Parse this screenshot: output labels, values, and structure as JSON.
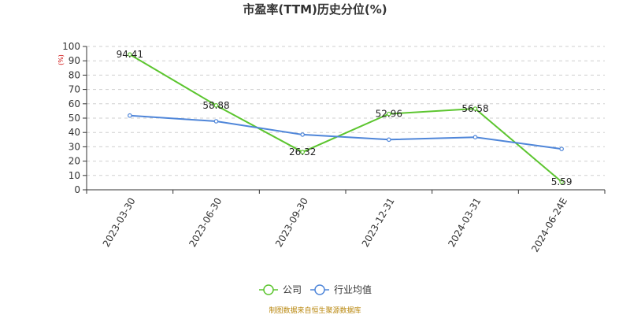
{
  "colors": {
    "company": "#5cc52f",
    "industry": "#4f86d9",
    "unit": "#cc0000",
    "source": "#b8860b",
    "grid": "#cfcfcf",
    "axis": "#333333"
  },
  "chart_data": {
    "type": "line",
    "title": "市盈率(TTM)历史分位(%)",
    "ylabel": "(%)",
    "xlabel": "",
    "ylim": [
      0,
      100
    ],
    "yticks": [
      0,
      10,
      20,
      30,
      40,
      50,
      60,
      70,
      80,
      90,
      100
    ],
    "grid": true,
    "legend_position": "bottom-center",
    "categories": [
      "2023-03-30",
      "2023-06-30",
      "2023-09-30",
      "2023-12-31",
      "2024-03-31",
      "2024-06-24E"
    ],
    "series": [
      {
        "name": "公司",
        "values": [
          94.41,
          58.88,
          26.32,
          52.96,
          56.58,
          5.59
        ],
        "labels": [
          "94.41",
          "58.88",
          "26.32",
          "52.96",
          "56.58",
          "5.59"
        ]
      },
      {
        "name": "行业均值",
        "values": [
          51.8,
          47.8,
          38.5,
          35.0,
          36.7,
          28.5
        ]
      }
    ],
    "source": "制图数据来自恒生聚源数据库"
  }
}
